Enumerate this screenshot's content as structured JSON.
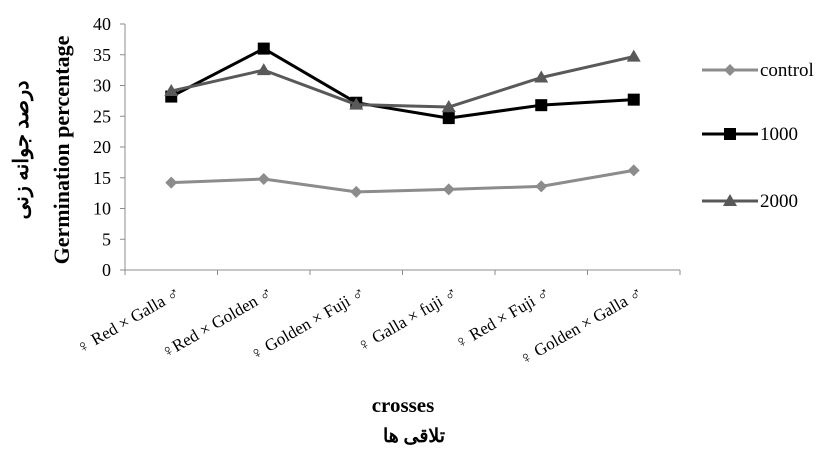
{
  "chart_data": {
    "type": "line",
    "categories": [
      "♀ Red × Galla ♂",
      "♀Red ×  Golden ♂",
      "♀ Golden × Fuji ♂",
      "♀ Galla × fuji ♂",
      "♀ Red × Fuji ♂",
      "♀ Golden × Galla ♂"
    ],
    "series": [
      {
        "name": "control",
        "values": [
          14.2,
          14.8,
          12.7,
          13.1,
          13.6,
          16.2
        ],
        "color": "#8c8c8c",
        "marker": "diamond"
      },
      {
        "name": "1000",
        "values": [
          28.2,
          36.0,
          27.2,
          24.7,
          26.8,
          27.7
        ],
        "color": "#000000",
        "marker": "square"
      },
      {
        "name": "2000",
        "values": [
          29.1,
          32.5,
          26.9,
          26.5,
          31.3,
          34.7
        ],
        "color": "#595959",
        "marker": "triangle"
      }
    ],
    "ylim": [
      0,
      40
    ],
    "yticks": [
      0,
      5,
      10,
      15,
      20,
      25,
      30,
      35,
      40
    ],
    "ylabel": "Germination percentage",
    "ylabel_persian": "درصد جوانه زنی",
    "xlabel": "crosses",
    "xlabel_persian": "تلاقی ها",
    "legend_position": "right",
    "grid": false
  }
}
